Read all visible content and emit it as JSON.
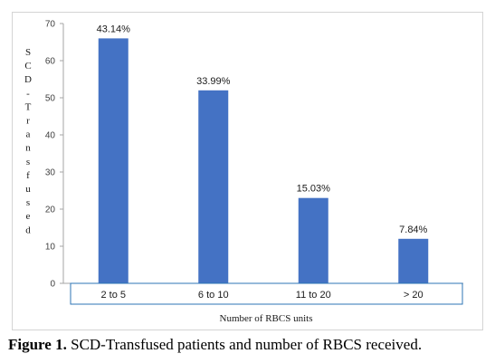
{
  "chart_data": {
    "type": "bar",
    "categories": [
      "2 to 5",
      "6 to 10",
      "11 to 20",
      "> 20"
    ],
    "values": [
      66,
      52,
      23,
      12
    ],
    "data_labels": [
      "43.14%",
      "33.99%",
      "15.03%",
      "7.84%"
    ],
    "ylabel": "SCD-Transfused",
    "xlabel": "Number of RBCS units",
    "ylim": [
      0,
      70
    ],
    "yticks": [
      0,
      10,
      20,
      30,
      40,
      50,
      60,
      70
    ],
    "grid": false,
    "bar_color": "#4472C4"
  },
  "caption": {
    "label": "Figure 1.",
    "text": " SCD-Transfused patients and number of RBCS received."
  }
}
